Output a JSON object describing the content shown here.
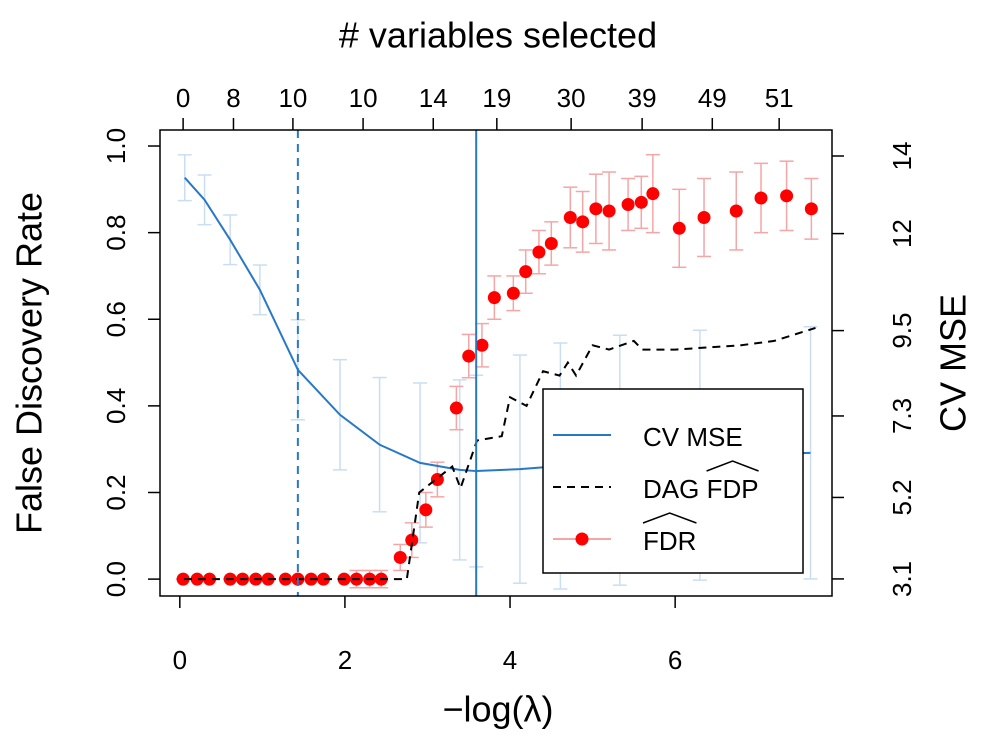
{
  "chart_data": {
    "type": "line",
    "top_label": "# variables selected",
    "xlabel": "−log(λ)",
    "ylabel": "False Discovery Rate",
    "y2label": "CV MSE",
    "xlim": [
      -0.24,
      7.9
    ],
    "ylim": [
      -0.039,
      1.037
    ],
    "y2lim": [
      2.66,
      14.67
    ],
    "xticks": [
      0,
      2,
      4,
      6
    ],
    "yticks": [
      {
        "value": 0,
        "label": "0.0"
      },
      {
        "value": 0.2,
        "label": "0.2"
      },
      {
        "value": 0.4,
        "label": "0.4"
      },
      {
        "value": 0.6,
        "label": "0.6"
      },
      {
        "value": 0.8,
        "label": "0.8"
      },
      {
        "value": 1,
        "label": "1.0"
      }
    ],
    "y2ticks": [
      3.1,
      5.2,
      7.3,
      9.5,
      12,
      14
    ],
    "top_ticks": [
      {
        "value": 0.04,
        "label": "0"
      },
      {
        "value": 0.65,
        "label": "8"
      },
      {
        "value": 1.37,
        "label": "10"
      },
      {
        "value": 2.22,
        "label": "10"
      },
      {
        "value": 3.07,
        "label": "14"
      },
      {
        "value": 3.84,
        "label": "19"
      },
      {
        "value": 4.74,
        "label": "30"
      },
      {
        "value": 5.6,
        "label": "39"
      },
      {
        "value": 6.45,
        "label": "49"
      },
      {
        "value": 7.26,
        "label": "51"
      }
    ],
    "vlines": [
      {
        "x": 1.43,
        "style": "dashed",
        "color": "#2878c8"
      },
      {
        "x": 3.59,
        "style": "solid",
        "color": "#2878c8"
      }
    ],
    "legend": "lower right",
    "series": [
      {
        "name": "CV MSE",
        "color": "#2878c8",
        "error_color": "#c9def3",
        "axis": "y2",
        "style": "solid",
        "x": [
          0.06,
          0.3,
          0.61,
          0.97,
          1.43,
          1.94,
          2.42,
          2.91,
          3.39,
          3.59,
          4.12,
          4.61,
          5.33,
          6.3,
          7.64
        ],
        "values": [
          13.44,
          12.87,
          11.84,
          10.55,
          8.49,
          7.33,
          6.56,
          6.09,
          5.91,
          5.88,
          5.93,
          6.01,
          6.16,
          6.29,
          6.35
        ],
        "errors": [
          0.59,
          0.64,
          0.64,
          0.64,
          1.29,
          1.42,
          1.73,
          2.06,
          2.32,
          2.47,
          2.94,
          3.17,
          3.22,
          3.22,
          3.25
        ]
      },
      {
        "name": "DAG FDP",
        "color": "#000000",
        "style": "dashed",
        "x": [
          0.05,
          2.75,
          2.9,
          3.3,
          3.4,
          3.6,
          3.9,
          4.0,
          4.2,
          4.4,
          4.6,
          4.7,
          4.8,
          5.0,
          5.2,
          5.5,
          5.6,
          6.0,
          6.8,
          7.2,
          7.7
        ],
        "values": [
          0,
          0,
          0.2,
          0.26,
          0.21,
          0.32,
          0.33,
          0.42,
          0.4,
          0.48,
          0.47,
          0.5,
          0.47,
          0.54,
          0.53,
          0.55,
          0.53,
          0.53,
          0.54,
          0.55,
          0.58
        ]
      },
      {
        "name": "FDR",
        "color": "#ff0000",
        "error_color": "#f4a6a6",
        "style": "points",
        "x": [
          0.04,
          0.21,
          0.36,
          0.61,
          0.76,
          0.92,
          1.07,
          1.28,
          1.43,
          1.59,
          1.74,
          1.99,
          2.14,
          2.3,
          2.44,
          2.67,
          2.81,
          2.98,
          3.12,
          3.35,
          3.5,
          3.66,
          3.81,
          4.04,
          4.19,
          4.35,
          4.5,
          4.73,
          4.88,
          5.04,
          5.2,
          5.43,
          5.59,
          5.73,
          6.05,
          6.35,
          6.74,
          7.04,
          7.35,
          7.65
        ],
        "values": [
          0,
          0,
          0,
          0,
          0,
          0,
          0,
          0,
          0,
          0,
          0,
          0,
          0,
          0,
          0,
          0.05,
          0.09,
          0.16,
          0.23,
          0.395,
          0.515,
          0.54,
          0.65,
          0.66,
          0.71,
          0.755,
          0.775,
          0.835,
          0.825,
          0.855,
          0.85,
          0.865,
          0.87,
          0.89,
          0.81,
          0.835,
          0.85,
          0.88,
          0.885,
          0.855
        ],
        "errors": [
          0,
          0,
          0,
          0,
          0,
          0,
          0,
          0,
          0,
          0,
          0,
          0,
          0.02,
          0.02,
          0.02,
          0.03,
          0.04,
          0.04,
          0.04,
          0.05,
          0.05,
          0.05,
          0.05,
          0.04,
          0.05,
          0.05,
          0.05,
          0.07,
          0.07,
          0.08,
          0.09,
          0.06,
          0.06,
          0.09,
          0.09,
          0.09,
          0.09,
          0.08,
          0.08,
          0.07
        ]
      }
    ]
  }
}
